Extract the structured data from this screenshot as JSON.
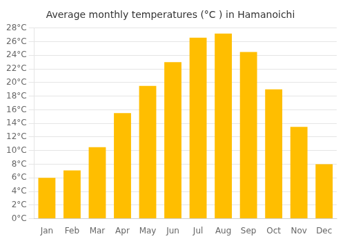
{
  "chart_data": {
    "type": "bar",
    "title": "Average monthly temperatures (°C ) in Hamanoichi",
    "categories": [
      "Jan",
      "Feb",
      "Mar",
      "Apr",
      "May",
      "Jun",
      "Jul",
      "Aug",
      "Sep",
      "Oct",
      "Nov",
      "Dec"
    ],
    "values": [
      6.0,
      7.1,
      10.5,
      15.5,
      19.5,
      23.0,
      26.6,
      27.2,
      24.5,
      19.0,
      13.5,
      8.0
    ],
    "color": "#FFBE00",
    "ylim": [
      0,
      28
    ],
    "yticks": [
      {
        "value": 0,
        "label": "0°C"
      },
      {
        "value": 2,
        "label": "2°C"
      },
      {
        "value": 4,
        "label": "4°C"
      },
      {
        "value": 6,
        "label": "6°C"
      },
      {
        "value": 8,
        "label": "8°C"
      },
      {
        "value": 10,
        "label": "10°C"
      },
      {
        "value": 12,
        "label": "12°C"
      },
      {
        "value": 14,
        "label": "14°C"
      },
      {
        "value": 16,
        "label": "16°C"
      },
      {
        "value": 18,
        "label": "18°C"
      },
      {
        "value": 20,
        "label": "20°C"
      },
      {
        "value": 22,
        "label": "22°C"
      },
      {
        "value": 24,
        "label": "24°C"
      },
      {
        "value": 26,
        "label": "26°C"
      },
      {
        "value": 28,
        "label": "28°C"
      }
    ],
    "grid": true
  }
}
